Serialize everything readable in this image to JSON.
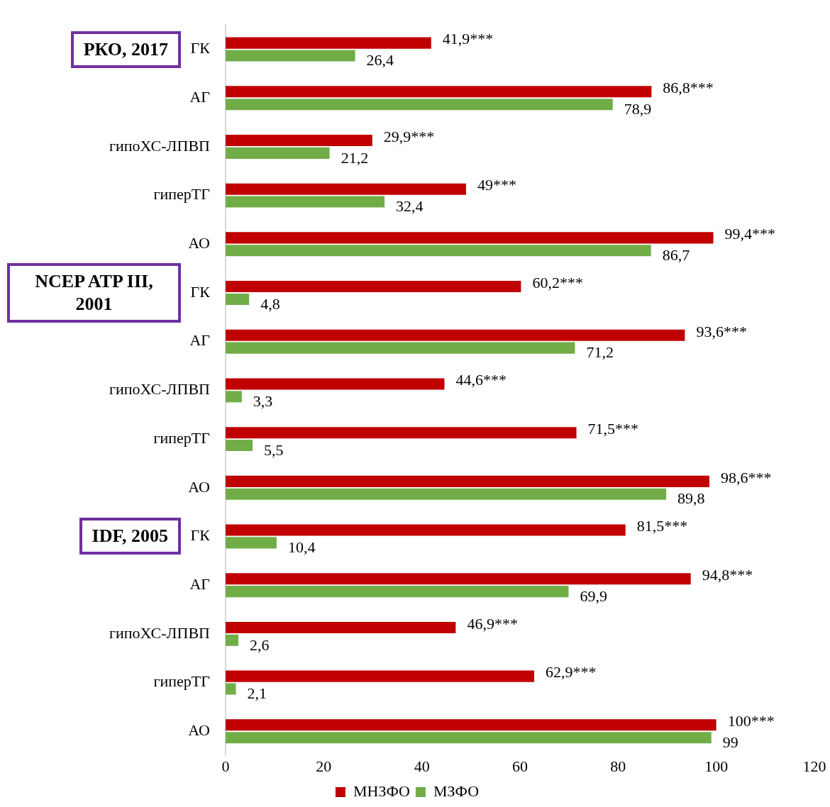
{
  "chart_data": {
    "type": "bar",
    "orientation": "horizontal",
    "categories": [
      "ГК",
      "АГ",
      "гипоХС-ЛПВП",
      "гиперТГ",
      "АО",
      "ГК",
      "АГ",
      "гипоХС-ЛПВП",
      "гиперТГ",
      "АО",
      "ГК",
      "АГ",
      "гипоХС-ЛПВП",
      "гиперТГ",
      "АО"
    ],
    "series": [
      {
        "name": "МНЗФО",
        "color": "#c00000",
        "values": [
          41.9,
          86.8,
          29.9,
          49,
          99.4,
          60.2,
          93.6,
          44.6,
          71.5,
          98.6,
          81.5,
          94.8,
          46.9,
          62.9,
          100
        ],
        "value_labels": [
          "41,9***",
          "86,8***",
          "29,9***",
          "49***",
          "99,4***",
          "60,2***",
          "93,6***",
          "44,6***",
          "71,5***",
          "98,6***",
          "81,5***",
          "94,8***",
          "46,9***",
          "62,9***",
          "100***"
        ]
      },
      {
        "name": "МЗФО",
        "color": "#70ad47",
        "values": [
          26.4,
          78.9,
          21.2,
          32.4,
          86.7,
          4.8,
          71.2,
          3.3,
          5.5,
          89.8,
          10.4,
          69.9,
          2.6,
          2.1,
          99
        ],
        "value_labels": [
          "26,4",
          "78,9",
          "21,2",
          "32,4",
          "86,7",
          "4,8",
          "71,2",
          "3,3",
          "5,5",
          "89,8",
          "10,4",
          "69,9",
          "2,6",
          "2,1",
          "99"
        ]
      }
    ],
    "xlim": [
      0,
      120
    ],
    "xticks": [
      0,
      20,
      40,
      60,
      80,
      100,
      120
    ],
    "legend": "bottom",
    "annotations": [
      "РКО, 2017",
      "NCEP ATP III, 2001",
      "IDF, 2005"
    ]
  }
}
